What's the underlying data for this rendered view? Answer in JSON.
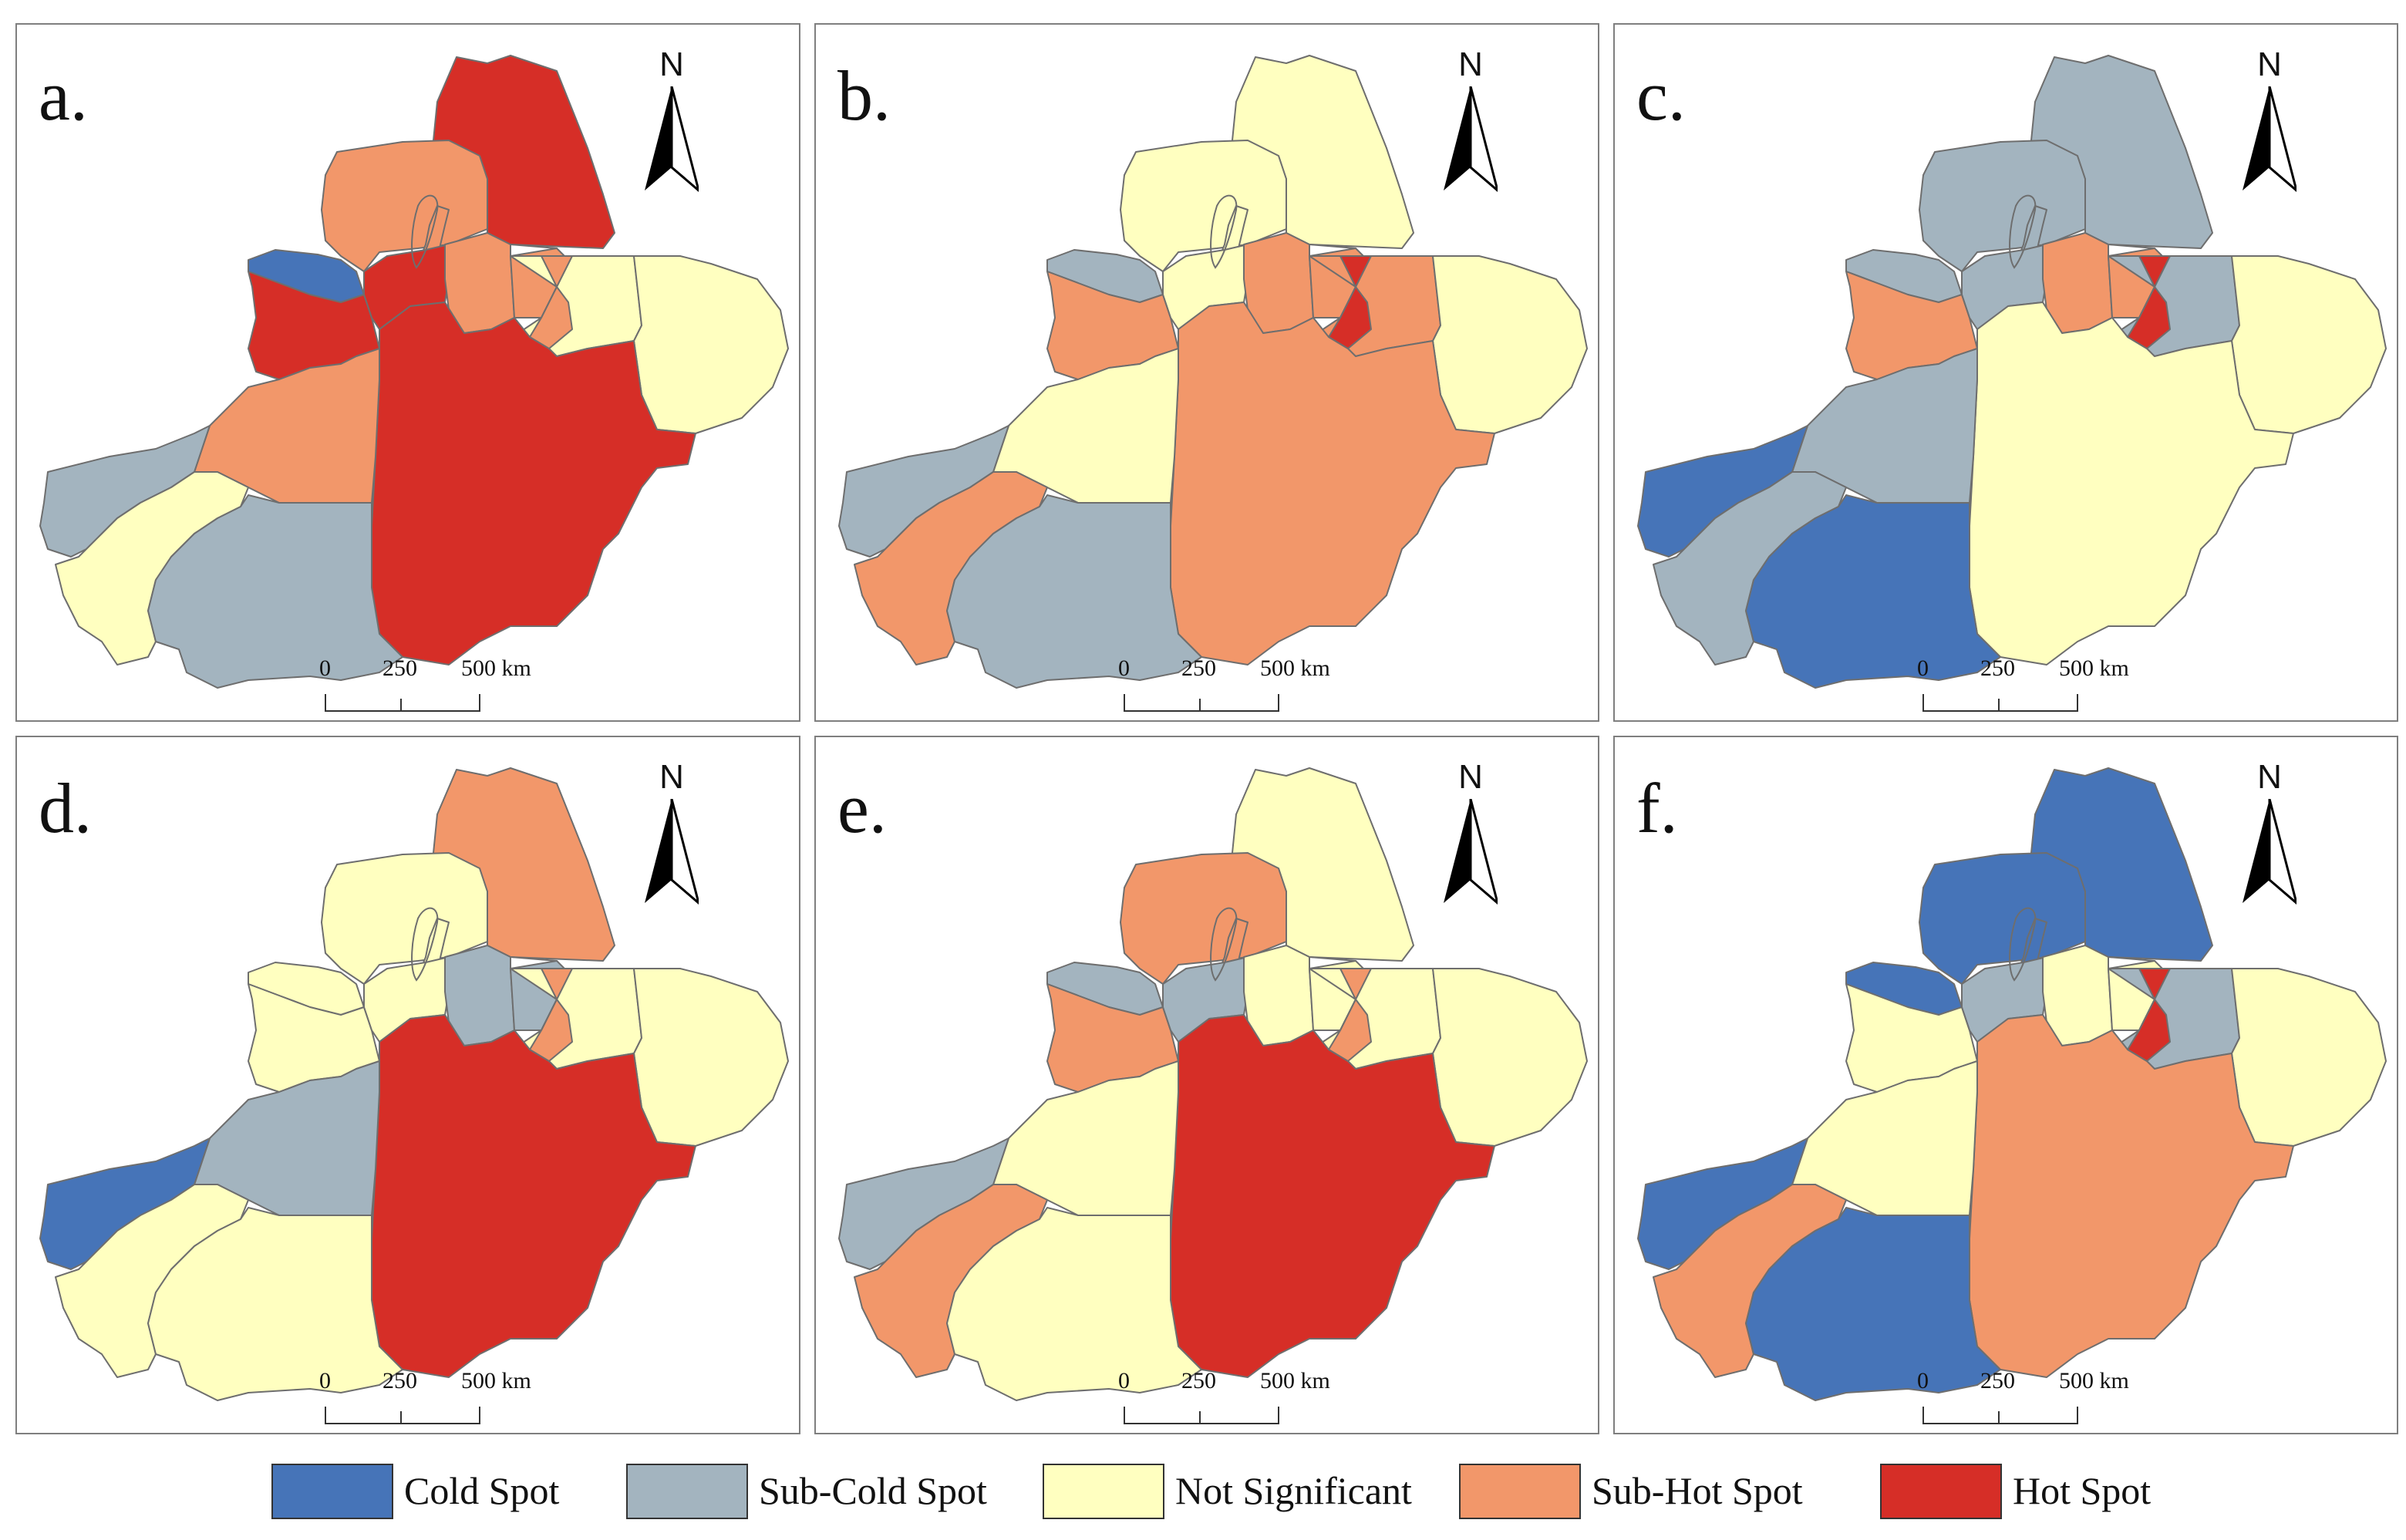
{
  "colors": {
    "cold": "#4674b8",
    "subcold": "#a3b4bf",
    "ns": "#ffffc0",
    "subhot": "#f2976a",
    "hot": "#d62e27",
    "border": "#6e6e6e"
  },
  "panels": [
    {
      "label": "a.",
      "regions": {
        "north": "hot",
        "altay_w": "subhot",
        "tacheng": "subhot",
        "bortala": "cold",
        "yili": "hot",
        "karamay": "hot",
        "shihezi": "subhot",
        "changji": "subhot",
        "urumqi": "subhot",
        "turpan": "ns",
        "hami": "ns",
        "bayingol": "hot",
        "aksu": "subhot",
        "kizilsu": "subcold",
        "kashgar": "ns",
        "hotan": "subcold"
      }
    },
    {
      "label": "b.",
      "regions": {
        "north": "ns",
        "altay_w": "ns",
        "tacheng": "ns",
        "bortala": "subcold",
        "yili": "subhot",
        "karamay": "ns",
        "shihezi": "subhot",
        "changji": "subhot",
        "urumqi": "hot",
        "turpan": "subhot",
        "hami": "ns",
        "bayingol": "subhot",
        "aksu": "ns",
        "kizilsu": "subcold",
        "kashgar": "subhot",
        "hotan": "subcold"
      }
    },
    {
      "label": "c.",
      "regions": {
        "north": "subcold",
        "altay_w": "subcold",
        "tacheng": "subcold",
        "bortala": "subcold",
        "yili": "subhot",
        "karamay": "subcold",
        "shihezi": "subhot",
        "changji": "subhot",
        "urumqi": "hot",
        "turpan": "subcold",
        "hami": "ns",
        "bayingol": "ns",
        "aksu": "subcold",
        "kizilsu": "cold",
        "kashgar": "subcold",
        "hotan": "cold"
      }
    },
    {
      "label": "d.",
      "regions": {
        "north": "subhot",
        "altay_w": "ns",
        "tacheng": "ns",
        "bortala": "ns",
        "yili": "ns",
        "karamay": "ns",
        "shihezi": "subcold",
        "changji": "subcold",
        "urumqi": "subhot",
        "turpan": "ns",
        "hami": "ns",
        "bayingol": "hot",
        "aksu": "subcold",
        "kizilsu": "cold",
        "kashgar": "ns",
        "hotan": "ns"
      }
    },
    {
      "label": "e.",
      "regions": {
        "north": "ns",
        "altay_w": "subhot",
        "tacheng": "subhot",
        "bortala": "subcold",
        "yili": "subhot",
        "karamay": "subcold",
        "shihezi": "ns",
        "changji": "ns",
        "urumqi": "subhot",
        "turpan": "ns",
        "hami": "ns",
        "bayingol": "hot",
        "aksu": "ns",
        "kizilsu": "subcold",
        "kashgar": "subhot",
        "hotan": "ns"
      }
    },
    {
      "label": "f.",
      "regions": {
        "north": "cold",
        "altay_w": "cold",
        "tacheng": "cold",
        "bortala": "cold",
        "yili": "ns",
        "karamay": "subcold",
        "shihezi": "ns",
        "changji": "ns",
        "urumqi": "hot",
        "turpan": "subcold",
        "hami": "ns",
        "bayingol": "subhot",
        "aksu": "ns",
        "kizilsu": "cold",
        "kashgar": "subhot",
        "hotan": "cold"
      }
    }
  ],
  "north_arrow": {
    "letter": "N"
  },
  "scale_bar": {
    "ticks": [
      "0",
      "250",
      "500 km"
    ]
  },
  "legend": [
    {
      "key": "cold",
      "label": "Cold Spot"
    },
    {
      "key": "subcold",
      "label": "Sub-Cold Spot"
    },
    {
      "key": "ns",
      "label": "Not Significant"
    },
    {
      "key": "subhot",
      "label": "Sub-Hot Spot"
    },
    {
      "key": "hot",
      "label": "Hot Spot"
    }
  ]
}
